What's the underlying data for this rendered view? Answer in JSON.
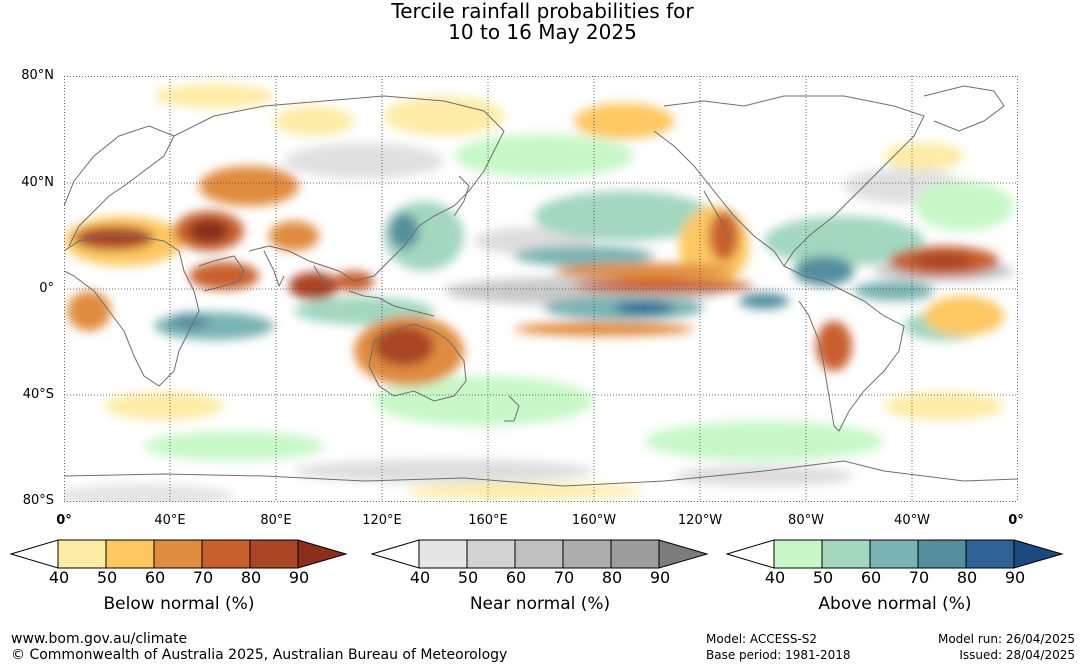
{
  "title": {
    "line1": "Tercile rainfall probabilities for",
    "line2": "10 to 16 May 2025"
  },
  "latitude_labels": [
    "80°N",
    "40°N",
    "0°",
    "40°S",
    "80°S"
  ],
  "longitude_labels": [
    "0°",
    "40°E",
    "80°E",
    "120°E",
    "160°E",
    "160°W",
    "120°W",
    "80°W",
    "40°W",
    "0°"
  ],
  "legends": [
    {
      "label": "Below normal (%)",
      "ticks": [
        "40",
        "50",
        "60",
        "70",
        "80",
        "90"
      ],
      "colors": [
        "#ffffff",
        "#fdeca6",
        "#fdc862",
        "#e08c40",
        "#c8602e",
        "#aa4525",
        "#8a2f1a"
      ]
    },
    {
      "label": "Near normal (%)",
      "ticks": [
        "40",
        "50",
        "60",
        "70",
        "80",
        "90"
      ],
      "colors": [
        "#ffffff",
        "#e6e6e6",
        "#d3d3d3",
        "#c0c0c0",
        "#adadad",
        "#9c9c9c",
        "#7d7d7d"
      ]
    },
    {
      "label": "Above normal (%)",
      "ticks": [
        "40",
        "50",
        "60",
        "70",
        "80",
        "90"
      ],
      "colors": [
        "#ffffff",
        "#c8f8c8",
        "#a3d7bf",
        "#7ab3b3",
        "#558f9f",
        "#2f6294",
        "#1a4a7e"
      ]
    }
  ],
  "footer": {
    "url": "www.bom.gov.au/climate",
    "copyright": "© Commonwealth of Australia 2025, Australian Bureau of Meteorology",
    "model": "Model: ACCESS-S2",
    "base_period": "Base period: 1981-2018",
    "model_run": "Model run: 26/04/2025",
    "issued": "Issued: 28/04/2025"
  }
}
